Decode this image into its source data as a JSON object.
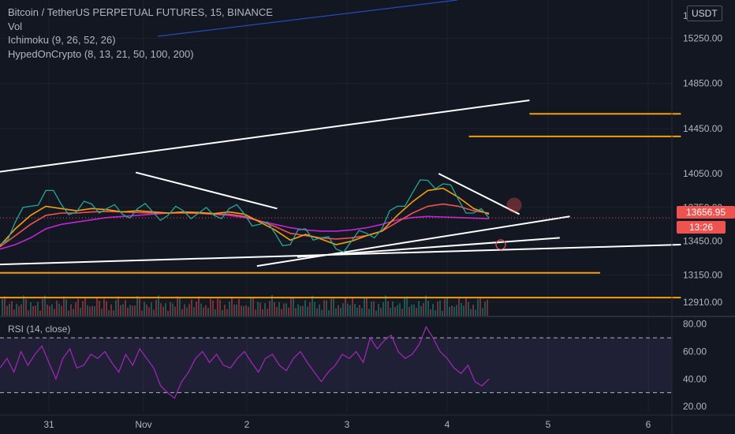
{
  "chart_data": [
    {
      "type": "candlestick",
      "title": "Bitcoin / TetherUS PERPETUAL FUTURES, 15, BINANCE",
      "indicators": [
        "Vol",
        "Ichimoku (9, 26, 52, 26)",
        "HypedOnCrypto (8, 13, 21, 50, 100, 200)"
      ],
      "x_ticks": [
        "31",
        "Nov",
        "2",
        "3",
        "4",
        "5",
        "6"
      ],
      "y_ticks": [
        15250.0,
        14850.0,
        14450.0,
        14050.0,
        13750.0,
        13450.0,
        13150.0,
        12910.0
      ],
      "y_top_label": "1",
      "ylim": [
        12790,
        15590
      ],
      "current_price": "13656.95",
      "candle_timer": "13:26",
      "currency": "USDT",
      "price_series": [
        13420,
        13620,
        13760,
        13900,
        13780,
        13710,
        13780,
        13740,
        13690,
        13740,
        13710,
        13680,
        13720,
        13700,
        13680,
        13740,
        13690,
        13600,
        13520,
        13420,
        13560,
        13480,
        13380,
        13450,
        13520,
        13560,
        13760,
        13880,
        13990,
        13960,
        13820,
        13700,
        13657
      ],
      "ma_series": [
        {
          "color": "#c026d3",
          "values": [
            13380,
            13420,
            13480,
            13560,
            13600,
            13620,
            13640,
            13660,
            13670,
            13680,
            13690,
            13700,
            13705,
            13700,
            13690,
            13680,
            13660,
            13630,
            13600,
            13570,
            13550,
            13540,
            13540,
            13550,
            13570,
            13600,
            13640,
            13660,
            13670,
            13665,
            13660,
            13655,
            13650
          ]
        },
        {
          "color": "#ef5350",
          "values": [
            13400,
            13500,
            13600,
            13680,
            13700,
            13700,
            13710,
            13715,
            13710,
            13705,
            13700,
            13700,
            13700,
            13698,
            13690,
            13690,
            13670,
            13630,
            13580,
            13520,
            13500,
            13480,
            13470,
            13480,
            13500,
            13540,
            13620,
            13700,
            13760,
            13780,
            13760,
            13720,
            13700
          ]
        },
        {
          "color": "#f59e0b",
          "values": [
            13410,
            13560,
            13680,
            13760,
            13740,
            13720,
            13740,
            13730,
            13710,
            13720,
            13710,
            13700,
            13710,
            13705,
            13695,
            13710,
            13690,
            13620,
            13550,
            13460,
            13510,
            13470,
            13420,
            13450,
            13500,
            13540,
            13680,
            13800,
            13900,
            13920,
            13840,
            13740,
            13690
          ]
        }
      ],
      "drawn_lines": [
        {
          "color": "#ffffff",
          "from": [
            "-1",
            14000
          ],
          "to": [
            "4.8",
            14700
          ]
        },
        {
          "color": "#ffffff",
          "from": [
            "0.9",
            14060
          ],
          "to": [
            "2.3",
            13740
          ]
        },
        {
          "color": "#ffffff",
          "from": [
            "-1",
            13230
          ],
          "to": [
            "6.3",
            13420
          ]
        },
        {
          "color": "#ffffff",
          "from": [
            "2.1",
            13230
          ],
          "to": [
            "5.2",
            13670
          ]
        },
        {
          "color": "#ffffff",
          "from": [
            "2.5",
            13310
          ],
          "to": [
            "5.1",
            13480
          ]
        },
        {
          "color": "#ffffff",
          "from": [
            "3.9",
            14050
          ],
          "to": [
            "4.7",
            13690
          ]
        },
        {
          "color": "#f59e0b",
          "from": [
            "4.8",
            14580
          ],
          "to": [
            "6.3",
            14580
          ]
        },
        {
          "color": "#f59e0b",
          "from": [
            "4.2",
            14380
          ],
          "to": [
            "6.3",
            14380
          ]
        },
        {
          "color": "#f59e0b",
          "from": [
            "-1",
            13170
          ],
          "to": [
            "5.5",
            13170
          ]
        },
        {
          "color": "#f59e0b",
          "from": [
            "-1",
            12950
          ],
          "to": [
            "6.3",
            12950
          ]
        }
      ]
    },
    {
      "type": "line",
      "title": "RSI (14, close)",
      "y_ticks": [
        80.0,
        60.0,
        40.0,
        20.0
      ],
      "ylim": [
        16,
        85
      ],
      "bands": [
        70,
        30
      ],
      "color": "#9c27b0",
      "values": [
        48,
        55,
        45,
        60,
        50,
        58,
        64,
        52,
        40,
        55,
        62,
        48,
        50,
        58,
        55,
        60,
        52,
        45,
        58,
        50,
        62,
        55,
        48,
        35,
        30,
        26,
        38,
        45,
        55,
        60,
        52,
        58,
        50,
        48,
        55,
        60,
        52,
        45,
        55,
        58,
        50,
        46,
        55,
        60,
        52,
        45,
        38,
        45,
        50,
        58,
        55,
        60,
        52,
        70,
        62,
        68,
        72,
        60,
        55,
        58,
        65,
        78,
        70,
        60,
        55,
        48,
        44,
        50,
        38,
        35,
        40
      ]
    }
  ]
}
